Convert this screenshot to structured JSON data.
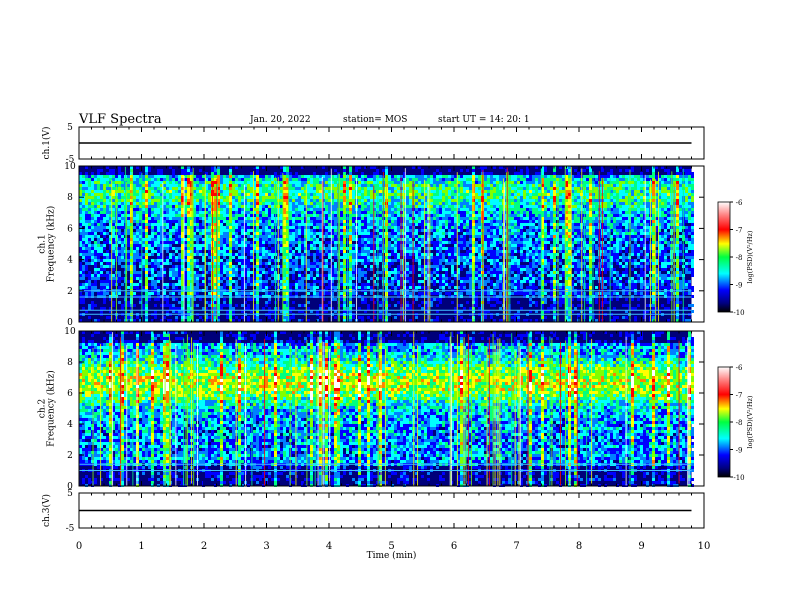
{
  "header": {
    "title": "VLF Spectra",
    "date": "Jan. 20, 2022",
    "station": "station= MOS",
    "start_ut": "start  UT  =   14: 20: 1"
  },
  "colors": {
    "colormap": [
      "#000000",
      "#00007f",
      "#0000ff",
      "#0080ff",
      "#00ffff",
      "#00ff80",
      "#80ff00",
      "#ffff00",
      "#ff8000",
      "#ff0000",
      "#ffffff"
    ]
  },
  "chart_data": [
    {
      "type": "line",
      "panel": "ch1-voltage",
      "ylabel": "ch.1(V)",
      "ylim": [
        -5,
        5
      ],
      "y_ticks": [
        "5",
        "-5"
      ],
      "x": [
        0,
        9.8
      ],
      "values": [
        0,
        0
      ]
    },
    {
      "type": "heatmap",
      "panel": "ch1-spectrogram",
      "ylabel": "ch.1\nFrequency (kHz)",
      "xlim": [
        0,
        10
      ],
      "ylim": [
        0,
        10
      ],
      "y_ticks": [
        "0",
        "2",
        "4",
        "6",
        "8",
        "10"
      ],
      "data_xmax": 9.8,
      "colorbar": {
        "label": "log(PSD)(V²/Hz)",
        "range": [
          -10,
          -6
        ],
        "ticks": [
          "-6",
          "-7",
          "-8",
          "-9",
          "-10"
        ]
      },
      "horizontal_lines_khz": [
        0.5,
        0.75,
        1.6,
        2.0
      ],
      "description": "broadband noise with many vertical impulsive spikes (sferics), strongest near 8.5 kHz"
    },
    {
      "type": "heatmap",
      "panel": "ch2-spectrogram",
      "ylabel": "ch.2\nFrequency (kHz)",
      "xlim": [
        0,
        10
      ],
      "ylim": [
        0,
        10
      ],
      "y_ticks": [
        "0",
        "2",
        "4",
        "6",
        "8",
        "10"
      ],
      "data_xmax": 9.8,
      "colorbar": {
        "label": "log(PSD)(V²/Hz)",
        "range": [
          -10,
          -6
        ],
        "ticks": [
          "-6",
          "-7",
          "-8",
          "-9",
          "-10"
        ]
      },
      "horizontal_lines_khz": [
        1.0,
        1.4
      ],
      "description": "intense band between 5 and 8 kHz with vertical spikes"
    },
    {
      "type": "line",
      "panel": "ch3-voltage",
      "ylabel": "ch.3(V)",
      "ylim": [
        -5,
        5
      ],
      "y_ticks": [
        "5",
        "-5"
      ],
      "x": [
        0,
        9.8
      ],
      "values": [
        0,
        0
      ]
    }
  ],
  "x_axis": {
    "label": "Time  (min)",
    "range": [
      0,
      10
    ],
    "ticks": [
      "0",
      "1",
      "2",
      "3",
      "4",
      "5",
      "6",
      "7",
      "8",
      "9",
      "10"
    ]
  }
}
